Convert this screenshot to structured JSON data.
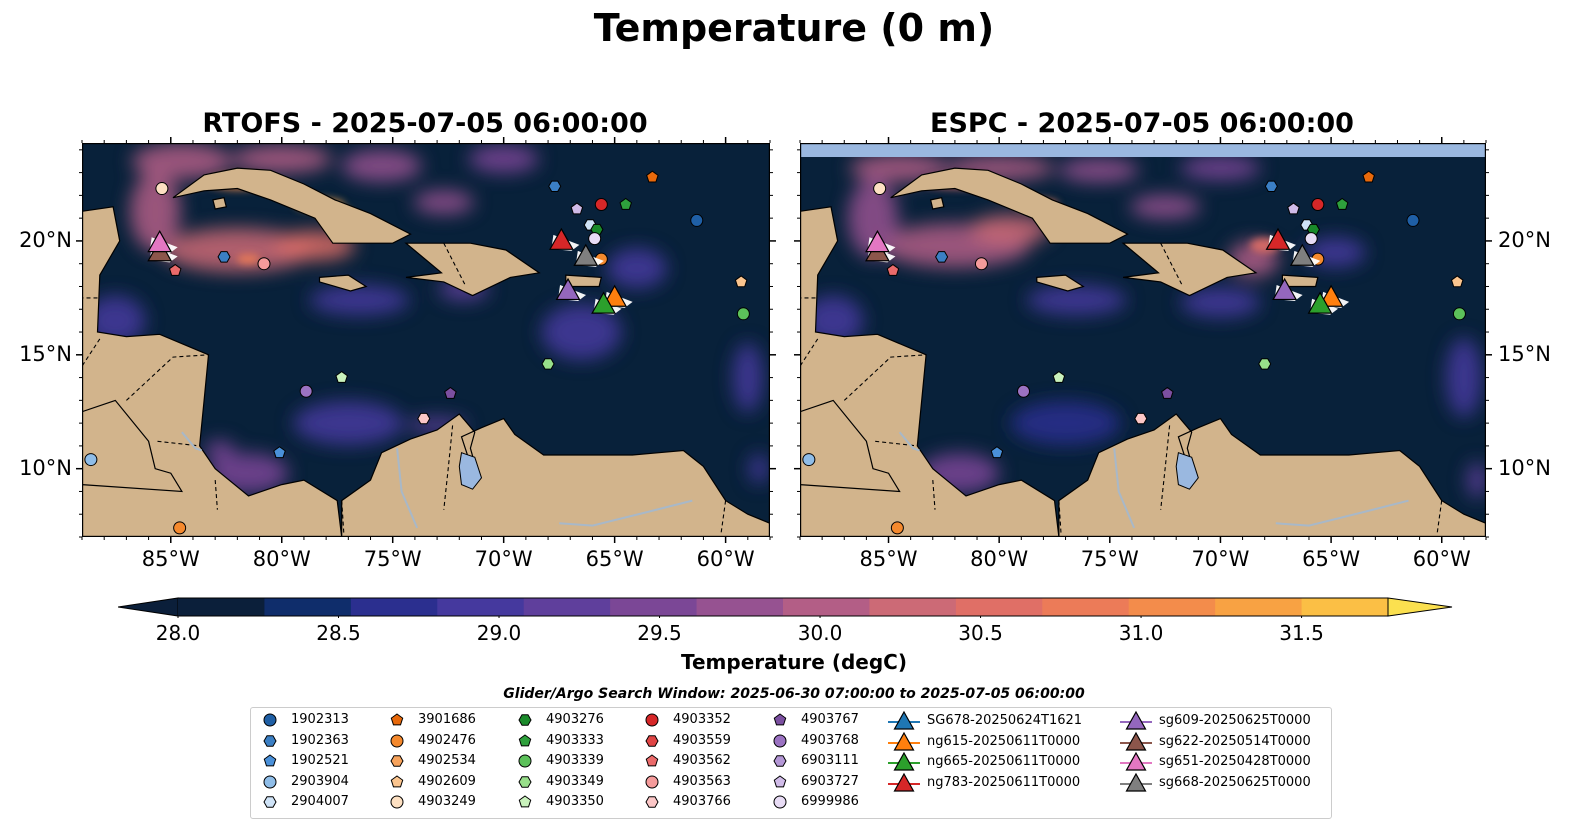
{
  "title": "Temperature (0 m)",
  "panels": [
    {
      "title": "RTOFS - 2025-07-05 06:00:00",
      "model": "rtofs"
    },
    {
      "title": "ESPC - 2025-07-05 06:00:00",
      "model": "espc"
    }
  ],
  "axes": {
    "lat_labels": [
      "20°N",
      "15°N",
      "10°N"
    ],
    "lon_labels": [
      "85°W",
      "80°W",
      "75°W",
      "70°W",
      "65°W",
      "60°W"
    ],
    "lon_range": [
      -89,
      -58
    ],
    "lat_range": [
      7,
      24.3
    ]
  },
  "colorbar": {
    "label": "Temperature (degC)",
    "tick_labels": [
      "28.0",
      "28.5",
      "29.0",
      "29.5",
      "30.0",
      "30.5",
      "31.0",
      "31.5"
    ],
    "range": [
      28.0,
      31.5
    ],
    "extend": "both",
    "colors": [
      "#0b1f3a",
      "#0f2d6b",
      "#2b2f8f",
      "#45399e",
      "#5f3f9c",
      "#7b4796",
      "#965291",
      "#b35e86",
      "#cc6a76",
      "#e06f66",
      "#ec7b58",
      "#f38c4b",
      "#f8a243",
      "#fbbf45",
      "#fbe04f"
    ]
  },
  "search_window": "Glider/Argo Search Window: 2025-06-30 07:00:00 to 2025-07-05 06:00:00",
  "colors": {
    "land": "#d2b48c",
    "lake": "#9ab8e0",
    "rivers": "#a8b8c8",
    "ocean_deep": "#08213a"
  },
  "legend": {
    "argo": [
      {
        "id": "1902313",
        "marker": "circle",
        "color": "#1f5fa5"
      },
      {
        "id": "1902363",
        "marker": "hexagon",
        "color": "#3b7fc4"
      },
      {
        "id": "1902521",
        "marker": "pentagon",
        "color": "#4a90d9"
      },
      {
        "id": "2903904",
        "marker": "circle",
        "color": "#8fbde8"
      },
      {
        "id": "2904007",
        "marker": "hexagon",
        "color": "#cfe3f7"
      },
      {
        "id": "3901686",
        "marker": "pentagon",
        "color": "#e8690b"
      },
      {
        "id": "4902476",
        "marker": "circle",
        "color": "#f5892d"
      },
      {
        "id": "4902534",
        "marker": "hexagon",
        "color": "#f7a35c"
      },
      {
        "id": "4902609",
        "marker": "pentagon",
        "color": "#fbc58f"
      },
      {
        "id": "4903249",
        "marker": "circle",
        "color": "#fde0c2"
      },
      {
        "id": "4903276",
        "marker": "hexagon",
        "color": "#1a8a2a"
      },
      {
        "id": "4903333",
        "marker": "pentagon",
        "color": "#2ea03c"
      },
      {
        "id": "4903339",
        "marker": "circle",
        "color": "#5cc15a"
      },
      {
        "id": "4903349",
        "marker": "hexagon",
        "color": "#98df8a"
      },
      {
        "id": "4903350",
        "marker": "pentagon",
        "color": "#c9f2bc"
      },
      {
        "id": "4903352",
        "marker": "circle",
        "color": "#d62728"
      },
      {
        "id": "4903559",
        "marker": "hexagon",
        "color": "#e04545"
      },
      {
        "id": "4903562",
        "marker": "pentagon",
        "color": "#eb6a6a"
      },
      {
        "id": "4903563",
        "marker": "circle",
        "color": "#f59b9b"
      },
      {
        "id": "4903766",
        "marker": "hexagon",
        "color": "#fcc7c7"
      },
      {
        "id": "4903767",
        "marker": "pentagon",
        "color": "#7b4fa0"
      },
      {
        "id": "4903768",
        "marker": "circle",
        "color": "#9b72c2"
      },
      {
        "id": "6903111",
        "marker": "hexagon",
        "color": "#b497d6"
      },
      {
        "id": "6903727",
        "marker": "pentagon",
        "color": "#d0bbe8"
      },
      {
        "id": "6999986",
        "marker": "circle",
        "color": "#e8dcf5"
      }
    ],
    "gliders": [
      {
        "id": "SG678-20250624T1621",
        "color": "#1f77b4"
      },
      {
        "id": "ng615-20250611T0000",
        "color": "#ff7f0e"
      },
      {
        "id": "ng665-20250611T0000",
        "color": "#2ca02c"
      },
      {
        "id": "ng783-20250611T0000",
        "color": "#d62728"
      },
      {
        "id": "sg609-20250625T0000",
        "color": "#9467bd"
      },
      {
        "id": "sg622-20250514T0000",
        "color": "#8c564b"
      },
      {
        "id": "sg651-20250428T0000",
        "color": "#e377c2"
      },
      {
        "id": "sg668-20250625T0000",
        "color": "#7f7f7f"
      }
    ]
  },
  "map_points": {
    "argo": [
      {
        "lon": -85.4,
        "lat": 22.3,
        "id": "4903249"
      },
      {
        "lon": -63.3,
        "lat": 22.8,
        "id": "3901686"
      },
      {
        "lon": -67.7,
        "lat": 22.4,
        "id": "1902363"
      },
      {
        "lon": -65.6,
        "lat": 21.6,
        "id": "4903352"
      },
      {
        "lon": -64.5,
        "lat": 21.6,
        "id": "4903333"
      },
      {
        "lon": -61.3,
        "lat": 20.9,
        "id": "1902313"
      },
      {
        "lon": -66.7,
        "lat": 21.4,
        "id": "6903727"
      },
      {
        "lon": -66.1,
        "lat": 20.7,
        "id": "2904007"
      },
      {
        "lon": -65.8,
        "lat": 20.5,
        "id": "4903276"
      },
      {
        "lon": -65.9,
        "lat": 20.1,
        "id": "6999986"
      },
      {
        "lon": -65.6,
        "lat": 19.2,
        "id": "4902476"
      },
      {
        "lon": -82.6,
        "lat": 19.3,
        "id": "1902363"
      },
      {
        "lon": -80.8,
        "lat": 19.0,
        "id": "4903563"
      },
      {
        "lon": -84.8,
        "lat": 18.7,
        "id": "4903562"
      },
      {
        "lon": -59.3,
        "lat": 18.2,
        "id": "4902609"
      },
      {
        "lon": -59.2,
        "lat": 16.8,
        "id": "4903339"
      },
      {
        "lon": -68.0,
        "lat": 14.6,
        "id": "4903349"
      },
      {
        "lon": -77.3,
        "lat": 14.0,
        "id": "4903350"
      },
      {
        "lon": -78.9,
        "lat": 13.4,
        "id": "4903768"
      },
      {
        "lon": -72.4,
        "lat": 13.3,
        "id": "4903767"
      },
      {
        "lon": -73.6,
        "lat": 12.2,
        "id": "4903766"
      },
      {
        "lon": -80.1,
        "lat": 10.7,
        "id": "1902521"
      },
      {
        "lon": -88.6,
        "lat": 10.4,
        "id": "2903904"
      },
      {
        "lon": -84.6,
        "lat": 7.4,
        "id": "4902476"
      }
    ],
    "gliders": [
      {
        "lon": -85.5,
        "lat": 19.5,
        "id": "sg622-20250514T0000"
      },
      {
        "lon": -85.5,
        "lat": 19.9,
        "id": "sg651-20250428T0000"
      },
      {
        "lon": -67.4,
        "lat": 20.0,
        "id": "ng783-20250611T0000"
      },
      {
        "lon": -66.3,
        "lat": 19.3,
        "id": "sg668-20250625T0000"
      },
      {
        "lon": -65.0,
        "lat": 17.5,
        "id": "ng615-20250611T0000"
      },
      {
        "lon": -67.1,
        "lat": 17.8,
        "id": "sg609-20250625T0000"
      },
      {
        "lon": -65.5,
        "lat": 17.2,
        "id": "ng665-20250611T0000"
      }
    ]
  }
}
